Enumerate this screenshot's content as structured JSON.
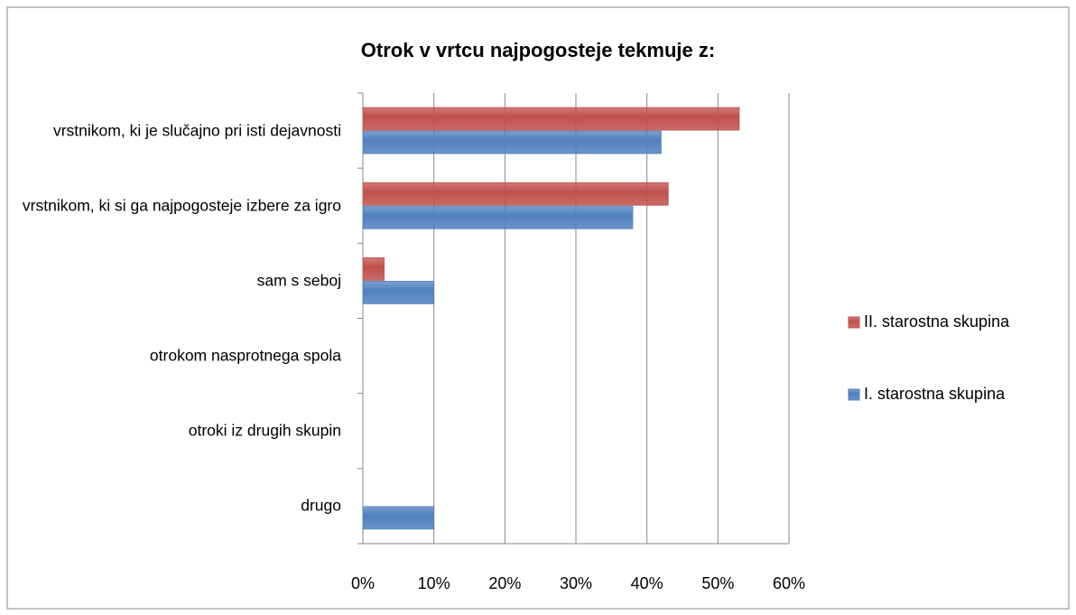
{
  "chart_data": {
    "type": "hbar",
    "title": "Otrok v vrtcu najpogosteje tekmuje z:",
    "categories": [
      "vrstnikom, ki je slučajno pri isti dejavnosti",
      "vrstnikom, ki si ga najpogosteje izbere za igro",
      "sam s seboj",
      "otrokom nasprotnega spola",
      "otroki iz drugih skupin",
      "drugo"
    ],
    "series": [
      {
        "name": "I. starostna skupina",
        "color": "#4f81bd",
        "values": [
          42,
          38,
          10,
          0,
          0,
          10
        ]
      },
      {
        "name": "II. starostna skupina",
        "color": "#c0504d",
        "values": [
          53,
          43,
          3,
          0,
          0,
          0
        ]
      }
    ],
    "xlim": [
      0,
      60
    ],
    "xticks": [
      {
        "value": 0,
        "label": "0%"
      },
      {
        "value": 10,
        "label": "10%"
      },
      {
        "value": 20,
        "label": "20%"
      },
      {
        "value": 30,
        "label": "30%"
      },
      {
        "value": 40,
        "label": "40%"
      },
      {
        "value": 50,
        "label": "50%"
      },
      {
        "value": 60,
        "label": "60%"
      }
    ],
    "grid": true,
    "legend": "right"
  }
}
